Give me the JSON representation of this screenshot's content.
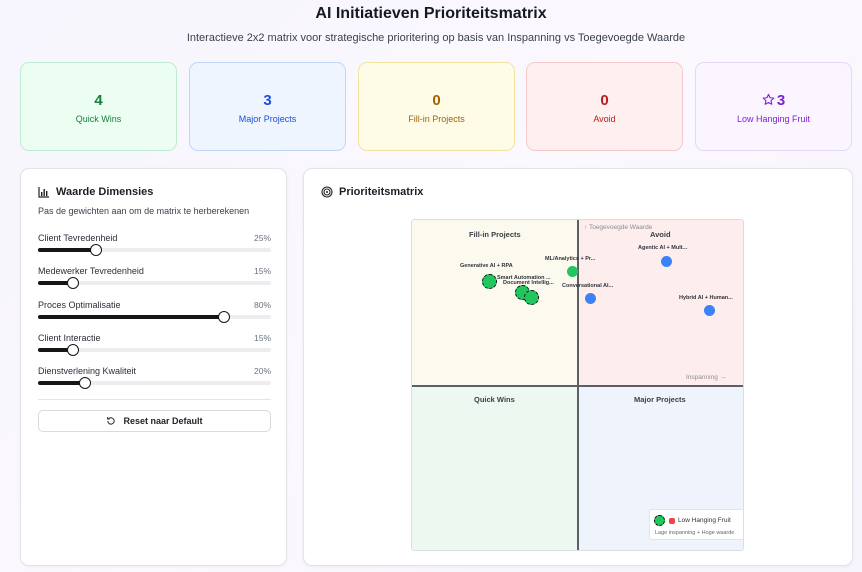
{
  "header": {
    "title": "AI Initiatieven Prioriteitsmatrix",
    "subtitle": "Interactieve 2x2 matrix voor strategische prioritering op basis van Inspanning vs Toegevoegde Waarde"
  },
  "stats": [
    {
      "value": "4",
      "label": "Quick Wins",
      "color": "#15803d"
    },
    {
      "value": "3",
      "label": "Major Projects",
      "color": "#1d4ed8"
    },
    {
      "value": "0",
      "label": "Fill-in Projects",
      "color": "#a16207"
    },
    {
      "value": "0",
      "label": "Avoid",
      "color": "#b91c1c"
    },
    {
      "value": "3",
      "label": "Low Hanging Fruit",
      "color": "#7e22ce",
      "icon": "star-icon"
    }
  ],
  "dimensions": {
    "title": "Waarde Dimensies",
    "description": "Pas de gewichten aan om de matrix te herberekenen",
    "sliders": [
      {
        "label": "Client Tevredenheid",
        "value_text": "25%",
        "value": 25
      },
      {
        "label": "Medewerker Tevredenheid",
        "value_text": "15%",
        "value": 15
      },
      {
        "label": "Proces Optimalisatie",
        "value_text": "80%",
        "value": 80
      },
      {
        "label": "Client Interactie",
        "value_text": "15%",
        "value": 15
      },
      {
        "label": "Dienstverlening Kwaliteit",
        "value_text": "20%",
        "value": 20
      }
    ],
    "reset_label": "Reset naar Default"
  },
  "matrix": {
    "title": "Prioriteitsmatrix",
    "quadrants": {
      "top_left": "Fill-in Projects",
      "top_right": "Avoid",
      "bottom_left": "Quick Wins",
      "bottom_right": "Major Projects"
    },
    "y_axis_label": "↑ Toegevoegde Waarde",
    "x_axis_label": "Inspanning →",
    "points": [
      {
        "label": "Generative AI + RPA",
        "type": "low-hanging-fruit",
        "color": "#22c55e"
      },
      {
        "label": "Smart Automation ...",
        "type": "low-hanging-fruit",
        "color": "#22c55e"
      },
      {
        "label": "Document Intellig...",
        "type": "low-hanging-fruit",
        "color": "#22c55e"
      },
      {
        "label": "ML/Analytics + Pr...",
        "type": "quick-win",
        "color": "#22c55e"
      },
      {
        "label": "Conversational AI...",
        "type": "major-project",
        "color": "#3b82f6"
      },
      {
        "label": "Agentic AI + Mult...",
        "type": "major-project",
        "color": "#3b82f6"
      },
      {
        "label": "Hybrid AI + Human...",
        "type": "major-project",
        "color": "#3b82f6"
      }
    ],
    "legend": {
      "title": "Low Hanging Fruit",
      "note": "Lage inspanning + Hoge waarde"
    }
  }
}
